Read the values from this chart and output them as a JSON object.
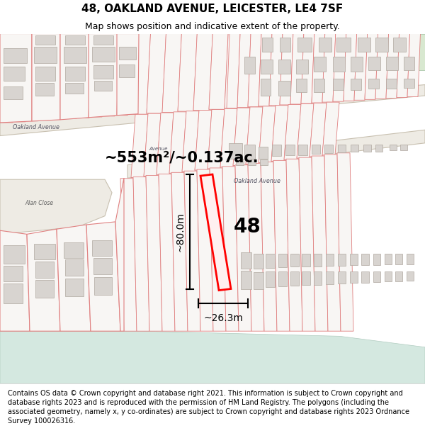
{
  "title": "48, OAKLAND AVENUE, LEICESTER, LE4 7SF",
  "subtitle": "Map shows position and indicative extent of the property.",
  "footer": "Contains OS data © Crown copyright and database right 2021. This information is subject to Crown copyright and database rights 2023 and is reproduced with the permission of HM Land Registry. The polygons (including the associated geometry, namely x, y co-ordinates) are subject to Crown copyright and database rights 2023 Ordnance Survey 100026316.",
  "area_label": "~553m²/~0.137ac.",
  "height_label": "~80.0m",
  "width_label": "~26.3m",
  "number_label": "48",
  "map_bg": "#f8f6f4",
  "plot_edge": "#e08080",
  "plot_edge_light": "#e8a0a0",
  "building_fill": "#d8d4d0",
  "building_edge": "#b0a8a0",
  "road_fill": "#eeebe4",
  "road_edge": "#d0c8b8",
  "highlight_fill": "#fff0f0",
  "highlight_edge": "#ff0000",
  "green_fill": "#d8e8d0",
  "water_fill": "#d4e8e0",
  "title_fontsize": 11,
  "subtitle_fontsize": 9,
  "footer_fontsize": 7.0,
  "label_fontsize": 15,
  "number_fontsize": 20,
  "dim_fontsize": 10
}
